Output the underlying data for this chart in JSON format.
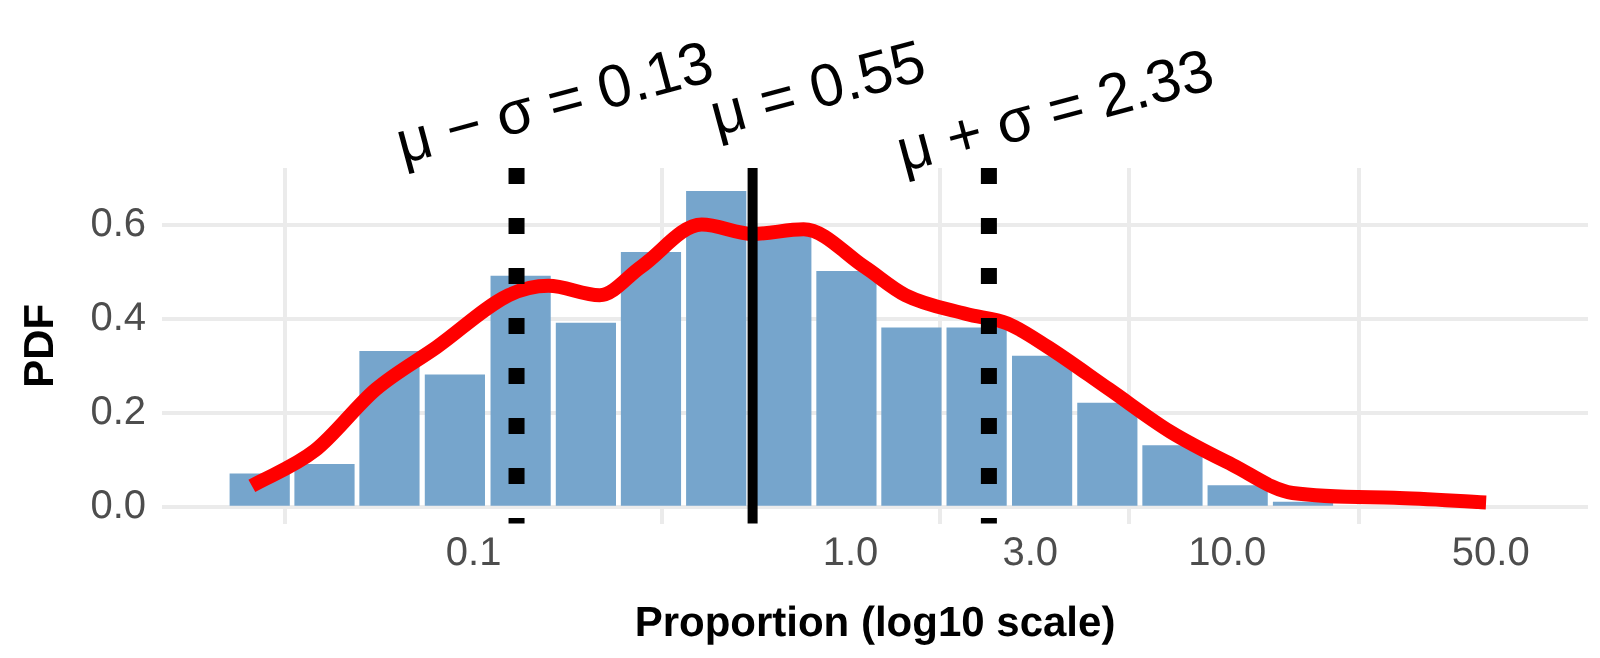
{
  "chart_data": {
    "type": "histogram",
    "xlabel": "Proportion (log10 scale)",
    "ylabel": "PDF",
    "log": "x",
    "series": [
      {
        "color": "#76a5cc",
        "bins": [
          0.0222,
          0.033,
          0.049,
          0.073,
          0.109,
          0.163,
          0.242,
          0.361,
          0.537,
          0.8,
          1.19,
          1.77,
          2.64,
          3.94,
          5.86,
          8.73,
          13.0,
          19.4
        ],
        "values": [
          0.07,
          0.09,
          0.33,
          0.28,
          0.49,
          0.39,
          0.54,
          0.67,
          0.58,
          0.5,
          0.38,
          0.38,
          0.32,
          0.22,
          0.13,
          0.045,
          0.01
        ]
      },
      {
        "type": "line",
        "color": "#ff0000",
        "x": [
          0.0258,
          0.0379,
          0.055,
          0.0799,
          0.124,
          0.158,
          0.216,
          0.278,
          0.403,
          0.551,
          0.751,
          1.09,
          1.4,
          2.03,
          2.61,
          3.34,
          4.86,
          7.06,
          10.3,
          14.9,
          27.7,
          48.6
        ],
        "values": [
          0.045,
          0.12,
          0.25,
          0.34,
          0.45,
          0.47,
          0.45,
          0.51,
          0.6,
          0.58,
          0.59,
          0.51,
          0.45,
          0.41,
          0.39,
          0.34,
          0.25,
          0.16,
          0.09,
          0.03,
          0.02,
          0.01
        ]
      }
    ],
    "xlim": [
      0.0149,
      90.6
    ],
    "xticks": [
      {
        "value": 0.1,
        "label": "0.1"
      },
      {
        "value": 1,
        "label": "1.0"
      },
      {
        "value": 3,
        "label": "3.0"
      },
      {
        "value": 10,
        "label": "10.0"
      },
      {
        "value": 50,
        "label": "50.0"
      }
    ],
    "ylim": [
      -0.035,
      0.72
    ],
    "yticks": [
      {
        "value": 0,
        "label": "0.0"
      },
      {
        "value": 0.2,
        "label": "0.2"
      },
      {
        "value": 0.4,
        "label": "0.4"
      },
      {
        "value": 0.6,
        "label": "0.6"
      }
    ],
    "grid": true,
    "marker": "none",
    "ref_lines": [
      {
        "axis": "x",
        "value": 0.13,
        "label": "μ − σ = 0.13",
        "color": "#000000",
        "line_style": "dotted"
      },
      {
        "axis": "x",
        "value": 0.55,
        "label": "μ = 0.55",
        "color": "#000000",
        "line_style": "solid"
      },
      {
        "axis": "x",
        "value": 2.33,
        "label": "μ + σ = 2.33",
        "color": "#000000",
        "line_style": "dotted"
      }
    ]
  }
}
